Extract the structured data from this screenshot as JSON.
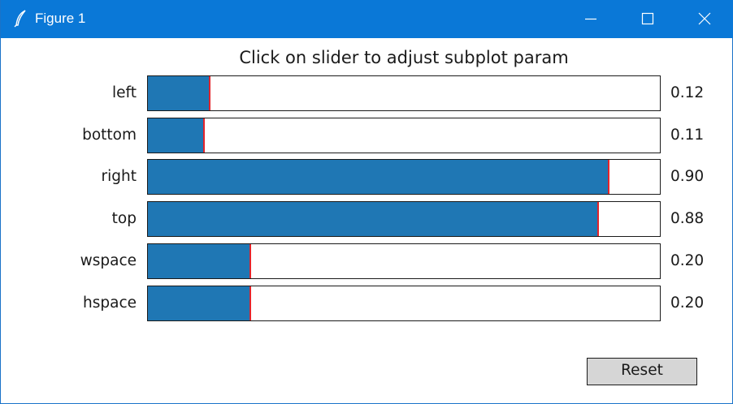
{
  "window": {
    "title": "Figure 1",
    "controls": [
      "minimize-icon",
      "maximize-icon",
      "close-icon"
    ]
  },
  "figure": {
    "title": "Click on slider to adjust subplot param",
    "fill_color": "#1f77b4",
    "marker_color": "#e3242b",
    "sliders": [
      {
        "label": "left",
        "value": 0.12,
        "display": "0.12"
      },
      {
        "label": "bottom",
        "value": 0.11,
        "display": "0.11"
      },
      {
        "label": "right",
        "value": 0.9,
        "display": "0.90"
      },
      {
        "label": "top",
        "value": 0.88,
        "display": "0.88"
      },
      {
        "label": "wspace",
        "value": 0.2,
        "display": "0.20"
      },
      {
        "label": "hspace",
        "value": 0.2,
        "display": "0.20"
      }
    ],
    "reset_label": "Reset"
  }
}
